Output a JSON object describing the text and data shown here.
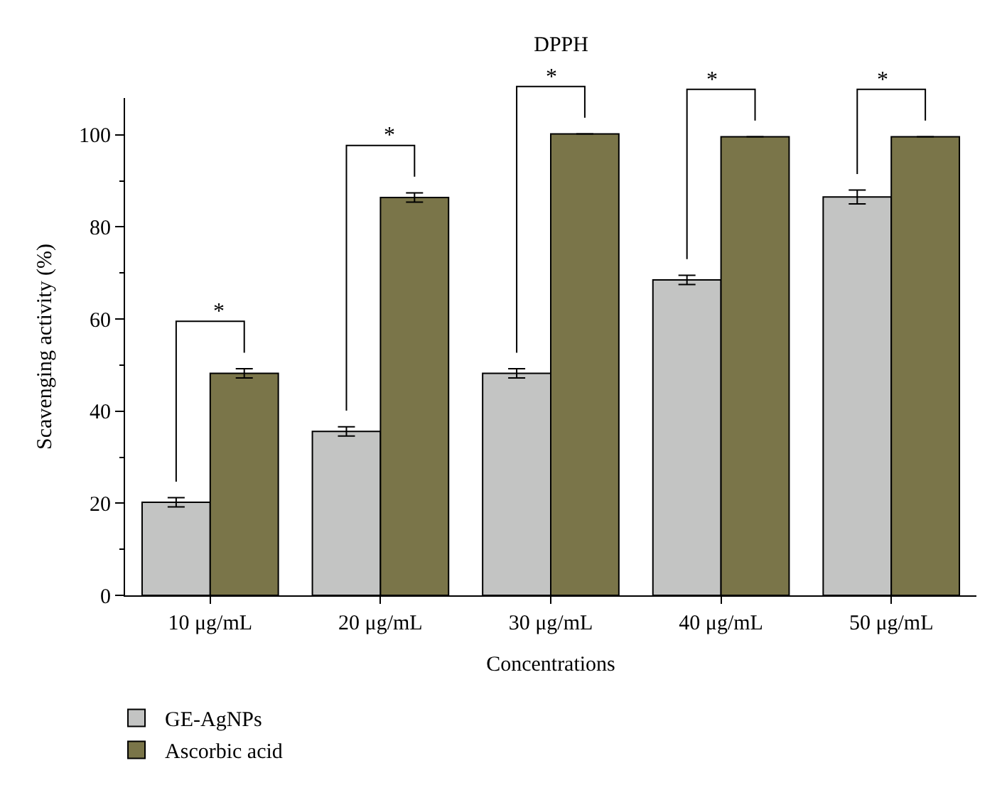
{
  "chart_data": {
    "type": "bar",
    "title": "DPPH",
    "xlabel": "Concentrations",
    "ylabel": "Scavenging activity (%)",
    "categories": [
      "10 μg/mL",
      "20 μg/mL",
      "30 μg/mL",
      "40 μg/mL",
      "50 μg/mL"
    ],
    "series": [
      {
        "name": "GE-AgNPs",
        "color": "#c3c4c3",
        "values": [
          20.2,
          35.6,
          48.2,
          68.5,
          86.5
        ],
        "errors": [
          1,
          1,
          1,
          1,
          1.5
        ]
      },
      {
        "name": "Ascorbic acid",
        "color": "#7a7549",
        "values": [
          48.2,
          86.4,
          100.2,
          99.6,
          99.6
        ],
        "errors": [
          1,
          1,
          null,
          null,
          null
        ]
      }
    ],
    "ylim": [
      0,
      108
    ],
    "yticks": [
      0,
      {
        "value": 10,
        "label": null
      },
      20,
      {
        "value": 30,
        "label": null
      },
      40,
      {
        "value": 50,
        "label": null
      },
      60,
      {
        "value": 70,
        "label": null
      },
      80,
      {
        "value": 90,
        "label": null
      },
      100
    ],
    "annotations": [
      "*",
      "*",
      "*",
      "*",
      "*"
    ],
    "legend": "bottom left"
  }
}
